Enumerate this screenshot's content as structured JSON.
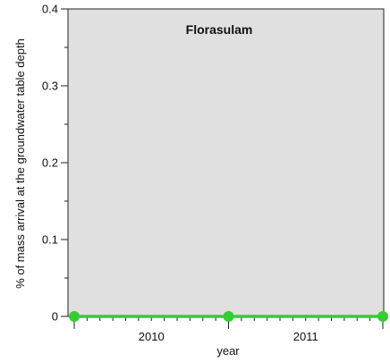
{
  "chart_data": {
    "type": "line",
    "title": "Florasulam",
    "xlabel": "year",
    "ylabel": "% of  mass arrival at the groundwater table depth",
    "ylim": [
      0,
      0.4
    ],
    "yticks": [
      "0",
      "0.1",
      "0.2",
      "0.3",
      "0.4"
    ],
    "x_category_labels": [
      "2010",
      "2011"
    ],
    "grid": false,
    "background_color": "#e0e0e0",
    "series": [
      {
        "color": "#33cc33",
        "points": [
          {
            "x": "2010-01-01",
            "y": 0
          },
          {
            "x": "2011-01-01",
            "y": 0
          },
          {
            "x": "2012-01-01",
            "y": 0
          }
        ]
      }
    ]
  }
}
